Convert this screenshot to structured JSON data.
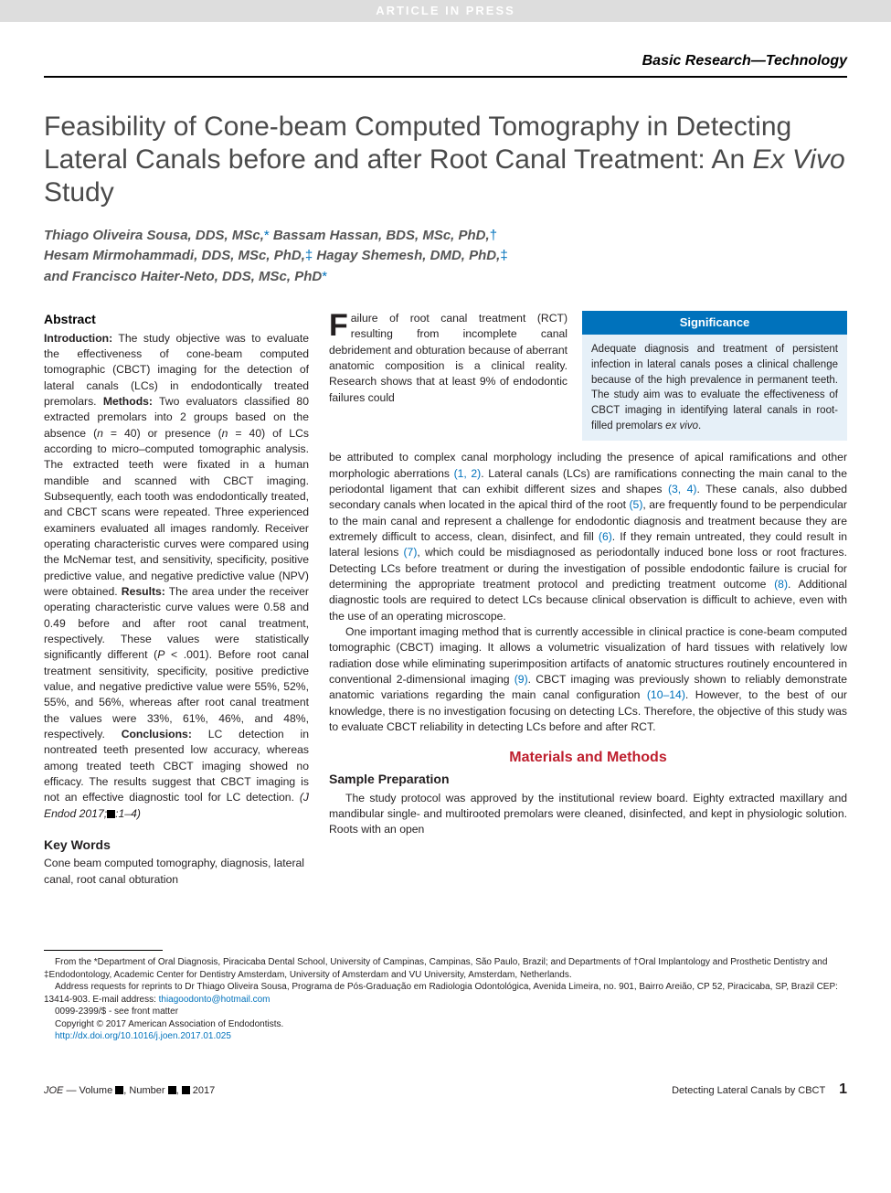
{
  "banner": "ARTICLE IN PRESS",
  "section_label": "Basic Research—Technology",
  "title_html": "Feasibility of Cone-beam Computed Tomography in Detecting Lateral Canals before and after Root Canal Treatment: An <em>Ex Vivo</em> Study",
  "authors_html": "Thiago Oliveira Sousa, DDS, MSc,<span class=\"affil-sym\">*</span> Bassam Hassan, BDS, MSc, PhD,<span class=\"affil-sym\">†</span><br>Hesam Mirmohammadi, DDS, MSc, PhD,<span class=\"affil-sym\">‡</span> Hagay Shemesh, DMD, PhD,<span class=\"affil-sym\">‡</span><br>and Francisco Haiter-Neto, DDS, MSc, PhD<span class=\"affil-sym\">*</span>",
  "abstract_heading": "Abstract",
  "abstract_html": "<b>Introduction:</b> The study objective was to evaluate the effectiveness of cone-beam computed tomographic (CBCT) imaging for the detection of lateral canals (LCs) in endodontically treated premolars. <b>Methods:</b> Two evaluators classified 80 extracted premolars into 2 groups based on the absence (<i>n</i> = 40) or presence (<i>n</i> = 40) of LCs according to micro–computed tomographic analysis. The extracted teeth were fixated in a human mandible and scanned with CBCT imaging. Subsequently, each tooth was endodontically treated, and CBCT scans were repeated. Three experienced examiners evaluated all images randomly. Receiver operating characteristic curves were compared using the McNemar test, and sensitivity, specificity, positive predictive value, and negative predictive value (NPV) were obtained. <b>Results:</b> The area under the receiver operating characteristic curve values were 0.58 and 0.49 before and after root canal treatment, respectively. These values were statistically significantly different (<i>P</i> &lt; .001). Before root canal treatment sensitivity, specificity, positive predictive value, and negative predictive value were 55%, 52%, 55%, and 56%, whereas after root canal treatment the values were 33%, 61%, 46%, and 48%, respectively. <b>Conclusions:</b> LC detection in nontreated teeth presented low accuracy, whereas among treated teeth CBCT imaging showed no efficacy. The results suggest that CBCT imaging is not an effective diagnostic tool for LC detection. <i>(J Endod 2017;<span class=\"blk\"></span>:1–4)</i>",
  "keywords_heading": "Key Words",
  "keywords_body": "Cone beam computed tomography, diagnosis, lateral canal, root canal obturation",
  "intro_lead_html": "ailure of root canal treatment (RCT) resulting from incomplete canal debridement and obturation because of aberrant anatomic composition is a clinical reality. Research shows that at least 9% of endodontic failures could",
  "significance": {
    "header": "Significance",
    "body_html": "Adequate diagnosis and treatment of persistent infection in lateral canals poses a clinical challenge because of the high prevalence in permanent teeth. The study aim was to evaluate the effectiveness of CBCT imaging in identifying lateral canals in root-filled premolars <i>ex vivo</i>."
  },
  "main_p1_html": "be attributed to complex canal morphology including the presence of apical ramifications and other morphologic aberrations <span class=\"cite\">(1, 2)</span>. Lateral canals (LCs) are ramifications connecting the main canal to the periodontal ligament that can exhibit different sizes and shapes <span class=\"cite\">(3, 4)</span>. These canals, also dubbed secondary canals when located in the apical third of the root <span class=\"cite\">(5)</span>, are frequently found to be perpendicular to the main canal and represent a challenge for endodontic diagnosis and treatment because they are extremely difficult to access, clean, disinfect, and fill <span class=\"cite\">(6)</span>. If they remain untreated, they could result in lateral lesions <span class=\"cite\">(7)</span>, which could be misdiagnosed as periodontally induced bone loss or root fractures. Detecting LCs before treatment or during the investigation of possible endodontic failure is crucial for determining the appropriate treatment protocol and predicting treatment outcome <span class=\"cite\">(8)</span>. Additional diagnostic tools are required to detect LCs because clinical observation is difficult to achieve, even with the use of an operating microscope.",
  "main_p2_html": "One important imaging method that is currently accessible in clinical practice is cone-beam computed tomographic (CBCT) imaging. It allows a volumetric visualization of hard tissues with relatively low radiation dose while eliminating superimposition artifacts of anatomic structures routinely encountered in conventional 2-dimensional imaging <span class=\"cite\">(9)</span>. CBCT imaging was previously shown to reliably demonstrate anatomic variations regarding the main canal configuration <span class=\"cite\">(10–14)</span>. However, to the best of our knowledge, there is no investigation focusing on detecting LCs. Therefore, the objective of this study was to evaluate CBCT reliability in detecting LCs before and after RCT.",
  "materials_heading": "Materials and Methods",
  "sample_heading": "Sample Preparation",
  "sample_body_html": "The study protocol was approved by the institutional review board. Eighty extracted maxillary and mandibular single- and multirooted premolars were cleaned, disinfected, and kept in physiologic solution. Roots with an open",
  "footnotes": {
    "affil": "From the *Department of Oral Diagnosis, Piracicaba Dental School, University of Campinas, Campinas, São Paulo, Brazil; and Departments of †Oral Implantology and Prosthetic Dentistry and ‡Endodontology, Academic Center for Dentistry Amsterdam, University of Amsterdam and VU University, Amsterdam, Netherlands.",
    "reprint_html": "Address requests for reprints to Dr Thiago Oliveira Sousa, Programa de Pós-Graduação em Radiologia Odontológica, Avenida Limeira, no. 901, Bairro Areião, CP 52, Piracicaba, SP, Brazil CEP: 13414-903. E-mail address: <a>thiagoodonto@hotmail.com</a>",
    "copy1": "0099-2399/$ - see front matter",
    "copy2": "Copyright © 2017 American Association of Endodontists.",
    "doi": "http://dx.doi.org/10.1016/j.joen.2017.01.025"
  },
  "footer": {
    "left_html": "<i>JOE</i> — Volume <span class=\"blk\"></span>, Number <span class=\"blk\"></span>, <span class=\"blk\"></span> 2017",
    "right_label": "Detecting Lateral Canals by CBCT",
    "page_number": "1"
  },
  "colors": {
    "accent_red": "#be1e2d",
    "link_blue": "#0072bc",
    "sig_bg": "#e6f0f8",
    "banner_bg": "#dddddd"
  }
}
